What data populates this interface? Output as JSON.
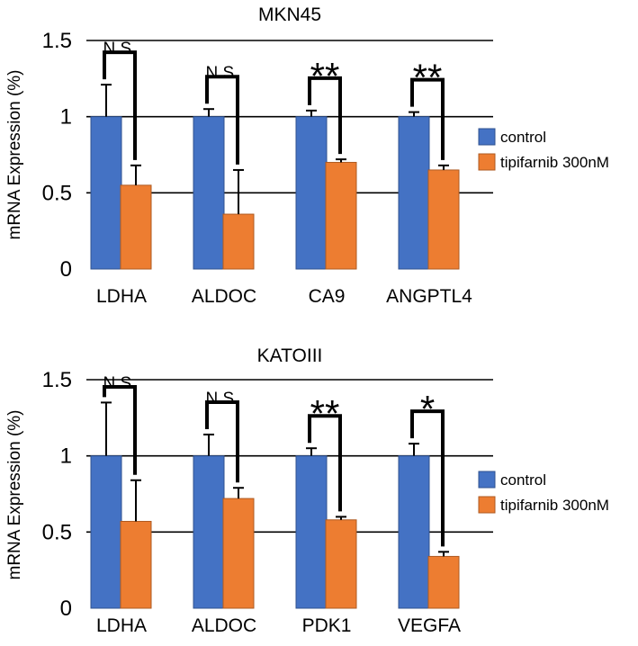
{
  "colors": {
    "control": "#4472C4",
    "control_edge": "#2F528F",
    "treated": "#ED7D31",
    "treated_edge": "#AE5A21",
    "grid": "#000000"
  },
  "chart_data": [
    {
      "type": "bar",
      "title": "MKN45",
      "xlabel": "",
      "ylabel": "mRNA Expression (%)",
      "ylim": [
        0,
        1.5
      ],
      "yticks": [
        "0",
        "0.5",
        "1",
        "1.5"
      ],
      "grid": true,
      "legend_position": "right",
      "categories": [
        "LDHA",
        "ALDOC",
        "CA9",
        "ANGPTL4"
      ],
      "series": [
        {
          "name": "control",
          "color": "#4472C4",
          "values": [
            1,
            1,
            1,
            1
          ],
          "errors": [
            0.21,
            0.05,
            0.04,
            0.03
          ]
        },
        {
          "name": "tipifarnib 300nM",
          "color": "#ED7D31",
          "values": [
            0.55,
            0.36,
            0.7,
            0.65
          ],
          "errors": [
            0.13,
            0.29,
            0.02,
            0.03
          ]
        }
      ],
      "significance": [
        "N.S.",
        "N.S.",
        "**",
        "**"
      ]
    },
    {
      "type": "bar",
      "title": "KATOIII",
      "xlabel": "",
      "ylabel": "mRNA Expression (%)",
      "ylim": [
        0,
        1.5
      ],
      "yticks": [
        "0",
        "0.5",
        "1",
        "1.5"
      ],
      "grid": true,
      "legend_position": "right",
      "categories": [
        "LDHA",
        "ALDOC",
        "PDK1",
        "VEGFA"
      ],
      "series": [
        {
          "name": "control",
          "color": "#4472C4",
          "values": [
            1,
            1,
            1,
            1
          ],
          "errors": [
            0.35,
            0.14,
            0.05,
            0.08
          ]
        },
        {
          "name": "tipifarnib 300nM",
          "color": "#ED7D31",
          "values": [
            0.57,
            0.72,
            0.58,
            0.34
          ],
          "errors": [
            0.27,
            0.07,
            0.02,
            0.03
          ]
        }
      ],
      "significance": [
        "N.S.",
        "N.S.",
        "**",
        "*"
      ]
    }
  ]
}
